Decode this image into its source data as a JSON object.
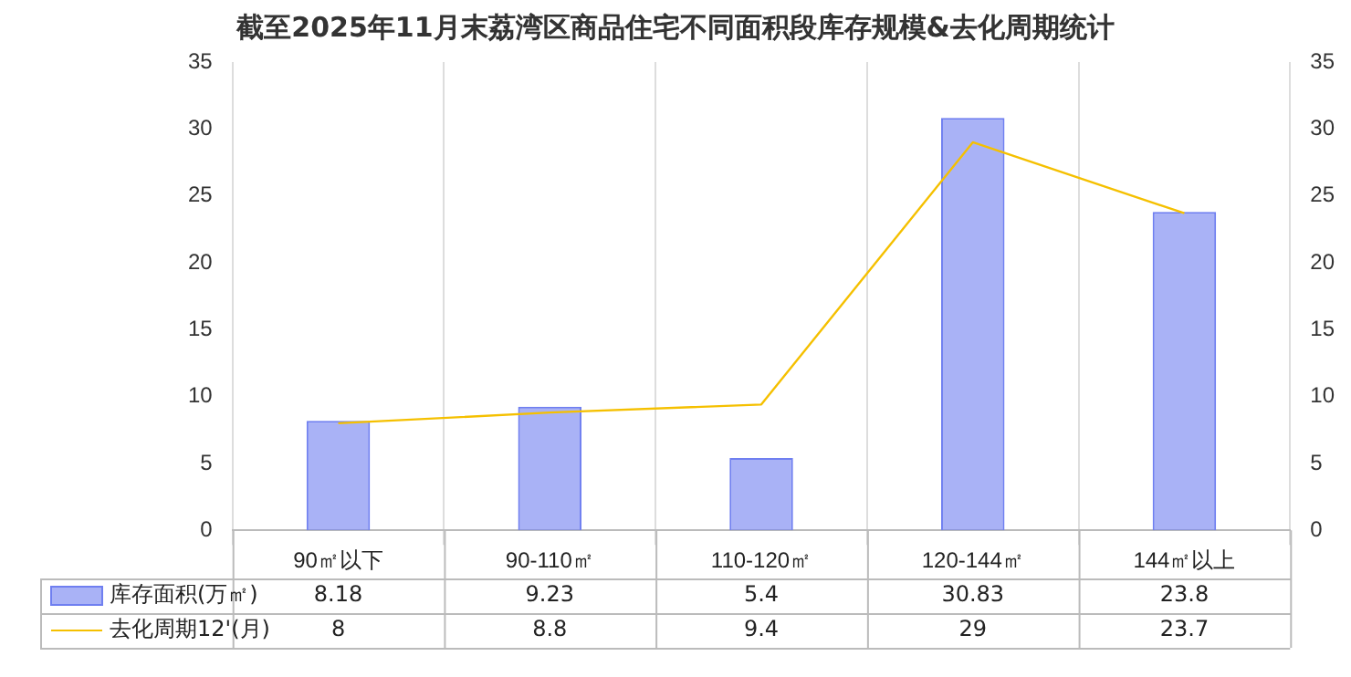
{
  "chart_data": {
    "type": "bar",
    "title": "截至2025年11月末荔湾区商品住宅不同面积段库存规模&去化周期统计",
    "categories": [
      "90㎡以下",
      "90-110㎡",
      "110-120㎡",
      "120-144㎡",
      "144㎡以上"
    ],
    "series": [
      {
        "name": "库存面积(万㎡)",
        "color": "#6f7ff0",
        "values": [
          8.18,
          9.23,
          5.4,
          30.83,
          23.8
        ]
      },
      {
        "name": "去化周期12'(月)",
        "type": "line",
        "axis": "y2",
        "color": "#f5c000",
        "values": [
          8,
          8.8,
          9.4,
          29,
          23.7
        ]
      }
    ],
    "ylim": [
      0,
      35
    ],
    "yticks": [
      0,
      5,
      10,
      15,
      20,
      25,
      30,
      35
    ],
    "y2lim": [
      0,
      35
    ],
    "y2ticks": [
      0,
      5,
      10,
      15,
      20,
      25,
      30,
      35
    ],
    "grid": "x",
    "legend": "bottom",
    "data_labels": true,
    "marker": "none"
  }
}
